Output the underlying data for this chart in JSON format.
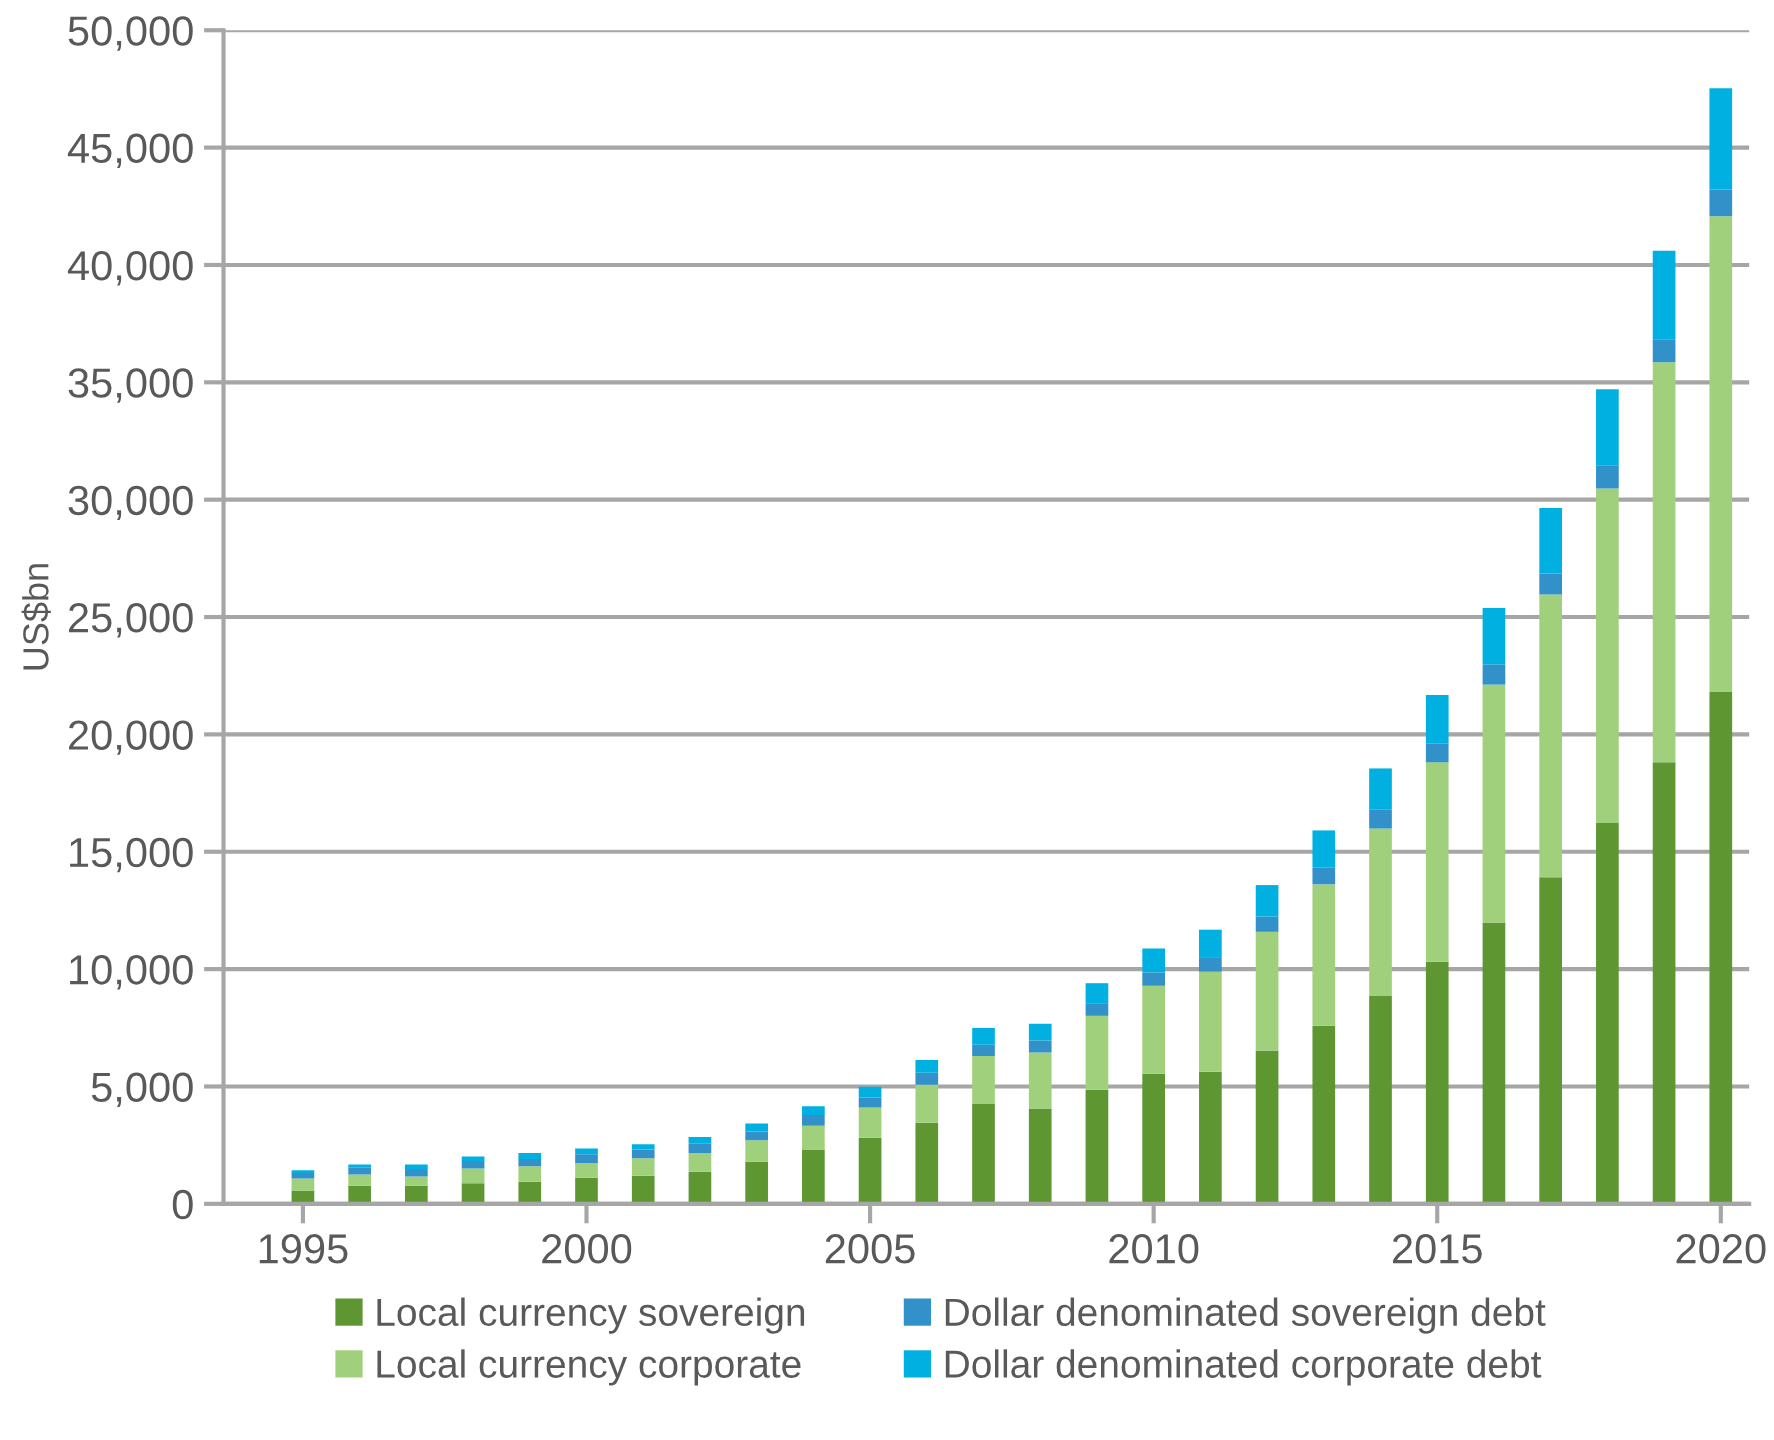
{
  "chart_data": {
    "type": "bar",
    "stacked": true,
    "ylabel": "US$bn",
    "categories": [
      "1995",
      null,
      null,
      null,
      null,
      "2000",
      null,
      null,
      null,
      null,
      "2005",
      null,
      null,
      null,
      null,
      "2010",
      null,
      null,
      null,
      null,
      "2015",
      null,
      null,
      null,
      null,
      "2020"
    ],
    "series": [
      {
        "name": "Local currency sovereign",
        "color": "#5e9732",
        "values": [
          570,
          770,
          770,
          880,
          940,
          1110,
          1200,
          1370,
          1790,
          2310,
          2820,
          3450,
          4270,
          4060,
          4860,
          5540,
          5630,
          6530,
          7590,
          8860,
          10310,
          11990,
          13910,
          16220,
          18810,
          21830
        ]
      },
      {
        "name": "Local currency corporate",
        "color": "#a0d07c",
        "values": [
          510,
          480,
          400,
          630,
          660,
          630,
          740,
          800,
          920,
          1020,
          1280,
          1620,
          2030,
          2390,
          3150,
          3750,
          4260,
          5060,
          6020,
          7130,
          8500,
          10130,
          12050,
          14260,
          17050,
          20250
        ]
      },
      {
        "name": "Dollar denominated sovereign debt",
        "color": "#3391c9",
        "values": [
          230,
          290,
          310,
          310,
          310,
          370,
          370,
          390,
          370,
          460,
          430,
          510,
          480,
          510,
          510,
          570,
          620,
          650,
          710,
          800,
          790,
          860,
          900,
          990,
          970,
          1130
        ]
      },
      {
        "name": "Dollar denominated corporate debt",
        "color": "#00b0e0",
        "values": [
          120,
          140,
          200,
          200,
          260,
          250,
          230,
          290,
          340,
          370,
          460,
          550,
          710,
          710,
          880,
          1020,
          1170,
          1340,
          1590,
          1760,
          2080,
          2400,
          2790,
          3240,
          3780,
          4320
        ]
      }
    ],
    "ylim": [
      0,
      50000
    ],
    "yticks": [
      0,
      {
        "value": 5000,
        "label": "5,000"
      },
      {
        "value": 10000,
        "label": "10,000"
      },
      {
        "value": 15000,
        "label": "15,000"
      },
      {
        "value": 20000,
        "label": "20,000"
      },
      {
        "value": 25000,
        "label": "25,000"
      },
      {
        "value": 30000,
        "label": "30,000"
      },
      {
        "value": 35000,
        "label": "35,000"
      },
      {
        "value": 40000,
        "label": "40,000"
      },
      {
        "value": 45000,
        "label": "45,000"
      },
      {
        "value": 50000,
        "label": "50,000"
      }
    ],
    "grid": "y",
    "legend": "bottom"
  }
}
